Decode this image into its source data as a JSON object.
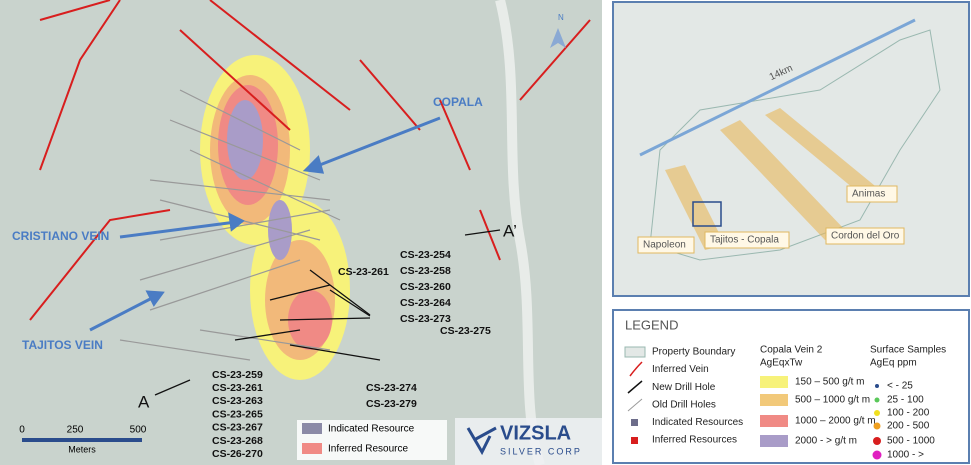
{
  "main_map": {
    "vein_labels": [
      "COPALA",
      "CRISTIANO VEIN",
      "TAJITOS VEIN"
    ],
    "section_start": "A",
    "section_end": "A’",
    "drill_single": "CS-23-261",
    "drill_group_right": [
      "CS-23-254",
      "CS-23-258",
      "CS-23-260",
      "CS-23-264",
      "CS-23-273"
    ],
    "drill_275": "CS-23-275",
    "drill_group_left": [
      "CS-23-259",
      "CS-23-261",
      "CS-23-263",
      "CS-23-265",
      "CS-23-267",
      "CS-23-268",
      "CS-26-270"
    ],
    "drill_group_bottom": [
      "CS-23-274",
      "CS-23-279"
    ],
    "north": "N",
    "scale": [
      "0",
      "250",
      "500"
    ],
    "scale_unit": "Meters",
    "inset_legend": [
      "Indicated Resource",
      "Inferred Resource"
    ],
    "logo": [
      "VIZSLA",
      "SILVER CORP"
    ]
  },
  "inset": {
    "distance": "14km",
    "labels": [
      "Animas",
      "Napoleon",
      "Tajitos - Copala",
      "Cordon del Oro"
    ]
  },
  "legend": {
    "title": "LEGEND",
    "items": [
      "Property Boundary",
      "Inferred Vein",
      "New Drill Hole",
      "Old Drill Holes",
      "Indicated Resources",
      "Inferred Resources"
    ],
    "vein_title": [
      "Copala Vein 2",
      "AgEqxTw"
    ],
    "vein_classes": [
      "150 – 500 g/t m",
      "500 – 1000 g/t m",
      "1000 – 2000 g/t m",
      "2000 - > g/t m"
    ],
    "samples_title": [
      "Surface Samples",
      "AgEq ppm"
    ],
    "sample_classes": [
      "< - 25",
      "25 - 100",
      "100 - 200",
      "200 - 500",
      "500 - 1000",
      "1000 - >"
    ]
  }
}
